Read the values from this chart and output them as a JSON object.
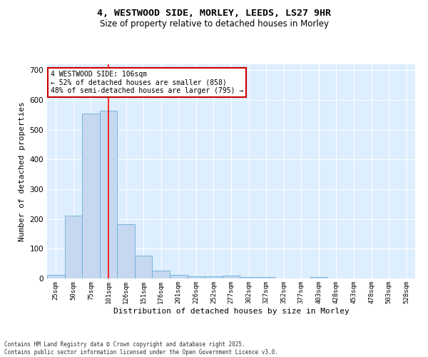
{
  "title1": "4, WESTWOOD SIDE, MORLEY, LEEDS, LS27 9HR",
  "title2": "Size of property relative to detached houses in Morley",
  "xlabel": "Distribution of detached houses by size in Morley",
  "ylabel": "Number of detached properties",
  "categories": [
    "25sqm",
    "50sqm",
    "75sqm",
    "101sqm",
    "126sqm",
    "151sqm",
    "176sqm",
    "201sqm",
    "226sqm",
    "252sqm",
    "277sqm",
    "302sqm",
    "327sqm",
    "352sqm",
    "377sqm",
    "403sqm",
    "428sqm",
    "453sqm",
    "478sqm",
    "503sqm",
    "528sqm"
  ],
  "values": [
    12,
    212,
    554,
    563,
    182,
    76,
    27,
    11,
    8,
    8,
    9,
    6,
    5,
    0,
    0,
    4,
    0,
    0,
    0,
    0,
    0
  ],
  "bar_color": "#c5d8f0",
  "bar_edge_color": "#6aaed6",
  "red_line_index": 3,
  "annotation_text": "4 WESTWOOD SIDE: 106sqm\n← 52% of detached houses are smaller (858)\n48% of semi-detached houses are larger (795) →",
  "annotation_box_color": "#ffffff",
  "annotation_box_edge": "#cc0000",
  "footer_text": "Contains HM Land Registry data © Crown copyright and database right 2025.\nContains public sector information licensed under the Open Government Licence v3.0.",
  "background_color": "#ddeeff",
  "grid_color": "#ffffff",
  "ylim": [
    0,
    720
  ],
  "yticks": [
    0,
    100,
    200,
    300,
    400,
    500,
    600,
    700
  ],
  "fig_width": 6.0,
  "fig_height": 5.0,
  "dpi": 100
}
